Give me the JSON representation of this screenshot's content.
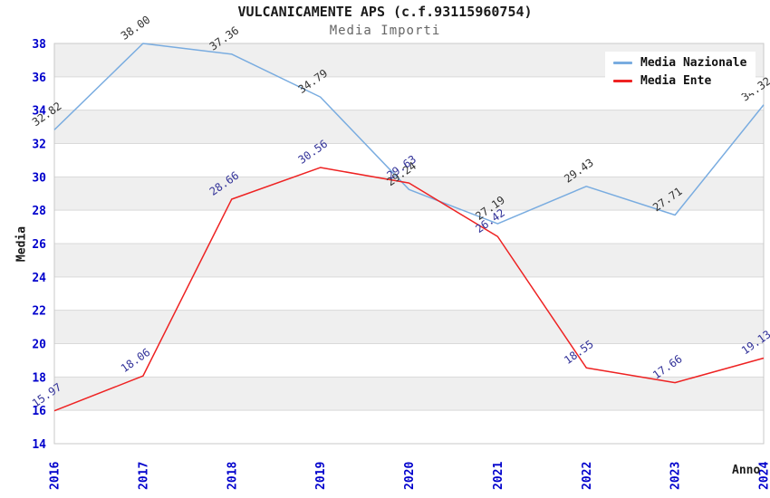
{
  "title": "VULCANICAMENTE APS (c.f.93115960754)",
  "subtitle": "Media Importi",
  "chart_data": {
    "type": "line",
    "x": [
      "2016",
      "2017",
      "2018",
      "2019",
      "2020",
      "2021",
      "2022",
      "2023",
      "2024"
    ],
    "series": [
      {
        "name": "Media Nazionale",
        "color": "#79ace0",
        "label_color": "#333333",
        "values": [
          32.82,
          38.0,
          37.36,
          34.79,
          29.24,
          27.19,
          29.43,
          27.71,
          34.32
        ]
      },
      {
        "name": "Media Ente",
        "color": "#ee2222",
        "label_color": "#333399",
        "values": [
          15.97,
          18.06,
          28.66,
          30.56,
          29.63,
          26.42,
          18.55,
          17.66,
          19.13
        ]
      }
    ],
    "title": "VULCANICAMENTE APS (c.f.93115960754)",
    "subtitle": "Media Importi",
    "xlabel": "Anno",
    "ylabel": "Media",
    "ylim": [
      14,
      38
    ],
    "ytick_step": 2,
    "yticks": [
      14,
      16,
      18,
      20,
      22,
      24,
      26,
      28,
      30,
      32,
      34,
      36,
      38
    ],
    "grid": "horizontal bands on",
    "band_fill": "#efefef",
    "grid_color": "#d9d9d9",
    "border_color": "#c9c9c9",
    "tick_label_color": "#0000cc",
    "legend_position": "top-right",
    "legend_entries": [
      "Media Nazionale",
      "Media Ente"
    ]
  }
}
